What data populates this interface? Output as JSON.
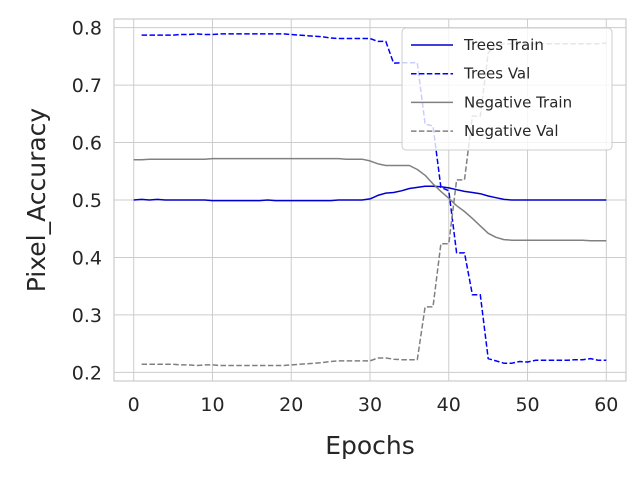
{
  "chart_data": {
    "type": "line",
    "title": "",
    "xlabel": "Epochs",
    "ylabel": "Pixel_Accuracy",
    "xlim": [
      -2.5,
      62.5
    ],
    "ylim": [
      0.185,
      0.815
    ],
    "xticks": [
      0,
      10,
      20,
      30,
      40,
      50,
      60
    ],
    "yticks": [
      0.2,
      0.3,
      0.4,
      0.5,
      0.6,
      0.7,
      0.8
    ],
    "xtick_labels": [
      "0",
      "10",
      "20",
      "30",
      "40",
      "50",
      "60"
    ],
    "ytick_labels": [
      "0.2",
      "0.3",
      "0.4",
      "0.5",
      "0.6",
      "0.7",
      "0.8"
    ],
    "grid": true,
    "legend": "top-right",
    "series": [
      {
        "name": "Trees Train",
        "color": "#0000cc",
        "dash": "solid",
        "x": [
          0,
          1,
          2,
          3,
          4,
          5,
          6,
          7,
          8,
          9,
          10,
          11,
          12,
          13,
          14,
          15,
          16,
          17,
          18,
          19,
          20,
          21,
          22,
          23,
          24,
          25,
          26,
          27,
          28,
          29,
          30,
          31,
          32,
          33,
          34,
          35,
          36,
          37,
          38,
          39,
          40,
          41,
          42,
          43,
          44,
          45,
          46,
          47,
          48,
          49,
          50,
          51,
          52,
          53,
          54,
          55,
          56,
          57,
          58,
          59,
          60
        ],
        "y": [
          0.5,
          0.501,
          0.5,
          0.501,
          0.5,
          0.5,
          0.5,
          0.5,
          0.5,
          0.5,
          0.499,
          0.499,
          0.499,
          0.499,
          0.499,
          0.499,
          0.499,
          0.5,
          0.499,
          0.499,
          0.499,
          0.499,
          0.499,
          0.499,
          0.499,
          0.499,
          0.5,
          0.5,
          0.5,
          0.5,
          0.502,
          0.508,
          0.512,
          0.513,
          0.516,
          0.52,
          0.522,
          0.524,
          0.524,
          0.523,
          0.521,
          0.518,
          0.515,
          0.513,
          0.511,
          0.507,
          0.504,
          0.501,
          0.5,
          0.5,
          0.5,
          0.5,
          0.5,
          0.5,
          0.5,
          0.5,
          0.5,
          0.5,
          0.5,
          0.5,
          0.5
        ]
      },
      {
        "name": "Trees Val",
        "color": "#0000ff",
        "dash": "dashed",
        "x": [
          1,
          2,
          3,
          4,
          5,
          6,
          7,
          8,
          9,
          10,
          11,
          12,
          13,
          14,
          15,
          16,
          17,
          18,
          19,
          20,
          21,
          22,
          23,
          24,
          25,
          26,
          27,
          28,
          29,
          30,
          31,
          32,
          33,
          34,
          35,
          36,
          37,
          38,
          39,
          40,
          41,
          42,
          43,
          44,
          45,
          46,
          47,
          48,
          49,
          50,
          51,
          52,
          53,
          54,
          55,
          56,
          57,
          58,
          59,
          60
        ],
        "y": [
          0.787,
          0.787,
          0.787,
          0.787,
          0.787,
          0.788,
          0.788,
          0.789,
          0.788,
          0.788,
          0.789,
          0.789,
          0.789,
          0.789,
          0.789,
          0.789,
          0.789,
          0.789,
          0.789,
          0.788,
          0.787,
          0.786,
          0.785,
          0.784,
          0.782,
          0.781,
          0.781,
          0.781,
          0.781,
          0.781,
          0.776,
          0.776,
          0.738,
          0.739,
          0.739,
          0.739,
          0.632,
          0.629,
          0.522,
          0.516,
          0.408,
          0.408,
          0.335,
          0.335,
          0.224,
          0.22,
          0.216,
          0.216,
          0.219,
          0.218,
          0.221,
          0.221,
          0.221,
          0.221,
          0.221,
          0.222,
          0.222,
          0.224,
          0.221,
          0.221
        ]
      },
      {
        "name": "Negative Train",
        "color": "#808080",
        "dash": "solid",
        "x": [
          0,
          1,
          2,
          3,
          4,
          5,
          6,
          7,
          8,
          9,
          10,
          11,
          12,
          13,
          14,
          15,
          16,
          17,
          18,
          19,
          20,
          21,
          22,
          23,
          24,
          25,
          26,
          27,
          28,
          29,
          30,
          31,
          32,
          33,
          34,
          35,
          36,
          37,
          38,
          39,
          40,
          41,
          42,
          43,
          44,
          45,
          46,
          47,
          48,
          49,
          50,
          51,
          52,
          53,
          54,
          55,
          56,
          57,
          58,
          59,
          60
        ],
        "y": [
          0.57,
          0.57,
          0.571,
          0.571,
          0.571,
          0.571,
          0.571,
          0.571,
          0.571,
          0.571,
          0.572,
          0.572,
          0.572,
          0.572,
          0.572,
          0.572,
          0.572,
          0.572,
          0.572,
          0.572,
          0.572,
          0.572,
          0.572,
          0.572,
          0.572,
          0.572,
          0.572,
          0.571,
          0.571,
          0.571,
          0.568,
          0.563,
          0.56,
          0.56,
          0.56,
          0.56,
          0.553,
          0.543,
          0.528,
          0.515,
          0.503,
          0.49,
          0.48,
          0.468,
          0.455,
          0.442,
          0.435,
          0.431,
          0.43,
          0.43,
          0.43,
          0.43,
          0.43,
          0.43,
          0.43,
          0.43,
          0.43,
          0.43,
          0.429,
          0.429,
          0.429
        ]
      },
      {
        "name": "Negative Val",
        "color": "#808080",
        "dash": "dashed",
        "x": [
          1,
          2,
          3,
          4,
          5,
          6,
          7,
          8,
          9,
          10,
          11,
          12,
          13,
          14,
          15,
          16,
          17,
          18,
          19,
          20,
          21,
          22,
          23,
          24,
          25,
          26,
          27,
          28,
          29,
          30,
          31,
          32,
          33,
          34,
          35,
          36,
          37,
          38,
          39,
          40,
          41,
          42,
          43,
          44,
          45,
          46,
          47,
          48,
          49,
          50,
          51,
          52,
          53,
          54,
          55,
          56,
          57,
          58,
          59,
          60
        ],
        "y": [
          0.214,
          0.214,
          0.214,
          0.214,
          0.214,
          0.213,
          0.213,
          0.212,
          0.213,
          0.213,
          0.212,
          0.212,
          0.212,
          0.212,
          0.212,
          0.212,
          0.212,
          0.212,
          0.212,
          0.213,
          0.214,
          0.215,
          0.216,
          0.217,
          0.219,
          0.22,
          0.22,
          0.22,
          0.22,
          0.22,
          0.225,
          0.225,
          0.223,
          0.222,
          0.222,
          0.222,
          0.314,
          0.314,
          0.424,
          0.424,
          0.535,
          0.535,
          0.646,
          0.646,
          0.756,
          0.77,
          0.772,
          0.772,
          0.772,
          0.772,
          0.772,
          0.772,
          0.772,
          0.772,
          0.772,
          0.772,
          0.772,
          0.772,
          0.772,
          0.773
        ]
      }
    ]
  }
}
